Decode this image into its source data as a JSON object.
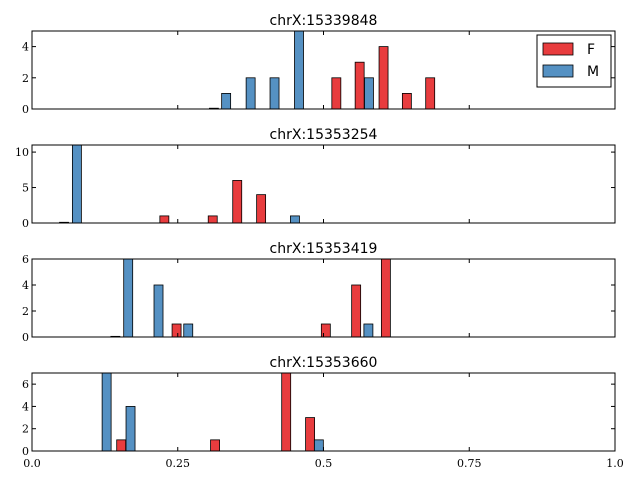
{
  "colors": {
    "F": "#e41a1c",
    "M": "#377eb8"
  },
  "legend": {
    "placement": "top-right",
    "entries": [
      {
        "label": "F",
        "color": "#e41a1c"
      },
      {
        "label": "M",
        "color": "#377eb8"
      }
    ]
  },
  "chart_data": [
    {
      "type": "bar",
      "title": "chrX:15339848",
      "xlim": [
        0,
        1
      ],
      "ylim": [
        0,
        5
      ],
      "yticks": [
        0,
        2,
        4
      ],
      "series": [
        {
          "name": "F",
          "color": "#e41a1c",
          "points": [
            {
              "x": 0.522,
              "y": 2
            },
            {
              "x": 0.562,
              "y": 3
            },
            {
              "x": 0.603,
              "y": 4
            },
            {
              "x": 0.643,
              "y": 1
            },
            {
              "x": 0.683,
              "y": 2
            }
          ]
        },
        {
          "name": "M",
          "color": "#377eb8",
          "points": [
            {
              "x": 0.312,
              "y": 0.05
            },
            {
              "x": 0.333,
              "y": 1
            },
            {
              "x": 0.375,
              "y": 2
            },
            {
              "x": 0.416,
              "y": 2
            },
            {
              "x": 0.458,
              "y": 5
            },
            {
              "x": 0.578,
              "y": 2
            }
          ]
        }
      ]
    },
    {
      "type": "bar",
      "title": "chrX:15353254",
      "xlim": [
        0,
        1
      ],
      "ylim": [
        0,
        11
      ],
      "yticks": [
        0,
        5,
        10
      ],
      "series": [
        {
          "name": "F",
          "color": "#e41a1c",
          "points": [
            {
              "x": 0.227,
              "y": 1
            },
            {
              "x": 0.31,
              "y": 1
            },
            {
              "x": 0.352,
              "y": 6
            },
            {
              "x": 0.393,
              "y": 4
            }
          ]
        },
        {
          "name": "M",
          "color": "#377eb8",
          "points": [
            {
              "x": 0.055,
              "y": 0.1
            },
            {
              "x": 0.077,
              "y": 11
            },
            {
              "x": 0.451,
              "y": 1
            }
          ]
        }
      ]
    },
    {
      "type": "bar",
      "title": "chrX:15353419",
      "xlim": [
        0,
        1
      ],
      "ylim": [
        0,
        6
      ],
      "yticks": [
        0,
        2,
        4,
        6
      ],
      "series": [
        {
          "name": "F",
          "color": "#e41a1c",
          "points": [
            {
              "x": 0.143,
              "y": 0.05
            },
            {
              "x": 0.248,
              "y": 1
            },
            {
              "x": 0.504,
              "y": 1
            },
            {
              "x": 0.556,
              "y": 4
            },
            {
              "x": 0.607,
              "y": 6
            }
          ]
        },
        {
          "name": "M",
          "color": "#377eb8",
          "points": [
            {
              "x": 0.165,
              "y": 6
            },
            {
              "x": 0.217,
              "y": 4
            },
            {
              "x": 0.268,
              "y": 1
            },
            {
              "x": 0.577,
              "y": 1
            }
          ]
        }
      ]
    },
    {
      "type": "bar",
      "title": "chrX:15353660",
      "xlim": [
        0,
        1
      ],
      "ylim": [
        0,
        7
      ],
      "yticks": [
        0,
        2,
        4,
        6
      ],
      "xticks": [
        {
          "value": 0.0,
          "label": "0.0"
        },
        {
          "value": 0.25,
          "label": "0.25"
        },
        {
          "value": 0.5,
          "label": "0.5"
        },
        {
          "value": 0.75,
          "label": "0.75"
        },
        {
          "value": 1.0,
          "label": "1.0"
        }
      ],
      "series": [
        {
          "name": "F",
          "color": "#e41a1c",
          "points": [
            {
              "x": 0.153,
              "y": 1
            },
            {
              "x": 0.314,
              "y": 1
            },
            {
              "x": 0.436,
              "y": 7
            },
            {
              "x": 0.477,
              "y": 3
            }
          ]
        },
        {
          "name": "M",
          "color": "#377eb8",
          "points": [
            {
              "x": 0.128,
              "y": 7
            },
            {
              "x": 0.169,
              "y": 4
            },
            {
              "x": 0.492,
              "y": 1
            }
          ]
        }
      ]
    }
  ]
}
